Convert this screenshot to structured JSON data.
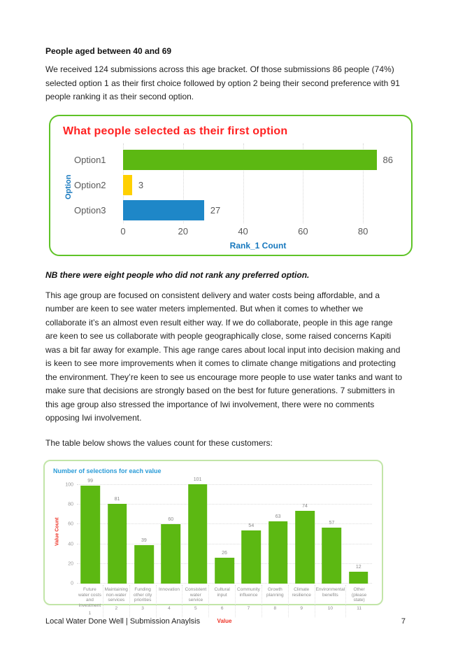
{
  "page": {
    "heading": "People aged between 40 and 69",
    "paragraph1": "We received 124 submissions across this age bracket.  Of those submissions 86 people (74%) selected option 1 as their first choice followed by option 2 being their second preference with 91 people ranking it as their second option.",
    "nb_note": "NB there were eight people who did not rank any preferred option.",
    "paragraph2": "This age group are focused on consistent delivery and water costs being affordable, and a number are keen to see water meters implemented. But when it comes to whether we collaborate it’s an almost even result either way. If we do collaborate, people in this age range are keen to see us collaborate with people geographically close, some raised concerns Kapiti was a bit far away for example. This age range cares about local input into decision making and is keen to see more improvements when it comes to climate change mitigations and protecting the environment. They’re keen to see us encourage more people to use water tanks and want to make sure that decisions are strongly based on the best for future generations. 7 submitters in this age group also stressed the importance of Iwi involvement, there were no comments opposing Iwi involvement.",
    "paragraph3": "The table below shows the values count for these customers:",
    "footer": {
      "left": "Local Water Done Well | Submission Anaylsis",
      "page_number": "7"
    }
  },
  "colors": {
    "chart1_border": "#5fc327",
    "chart1_title_red": "#ff2121",
    "axis_blue": "#1778be",
    "chart2_border": "#c2e5a8",
    "chart2_title_blue": "#2b9cd8",
    "chart2_axis_red": "#ee3124",
    "bar_green": "#5cb812",
    "bar_yellow": "#ffd000",
    "bar_blue": "#1e87c8"
  },
  "chart_data": [
    {
      "type": "bar",
      "orientation": "horizontal",
      "title": "What people selected as their first option",
      "categories": [
        "Option1",
        "Option2",
        "Option3"
      ],
      "values": [
        86,
        3,
        27
      ],
      "bar_colors": [
        "#5cb812",
        "#ffd000",
        "#1e87c8"
      ],
      "xlabel": "Rank_1 Count",
      "ylabel": "Option",
      "xlim": [
        0,
        90
      ],
      "xticks": [
        0,
        20,
        40,
        60,
        80
      ],
      "grid": "vertical-dotted",
      "data_labels": true
    },
    {
      "type": "bar",
      "orientation": "vertical",
      "title": "Number of selections for each value",
      "categories": [
        "Future water costs and investment",
        "Maintaining non-water services",
        "Funding other city priorities",
        "Innovation",
        "Consistent water service",
        "Cultural input",
        "Community influence",
        "Growth planning",
        "Climate resilience",
        "Environmental benefits",
        "Other (please state)"
      ],
      "category_numbers": [
        "1",
        "2",
        "3",
        "4",
        "5",
        "6",
        "7",
        "8",
        "9",
        "10",
        "11"
      ],
      "values": [
        99,
        81,
        39,
        60,
        101,
        26,
        54,
        63,
        74,
        57,
        12
      ],
      "bar_color": "#5cb812",
      "xlabel": "Value",
      "ylabel": "Value Count",
      "ylim": [
        0,
        105
      ],
      "yticks": [
        0,
        20,
        40,
        60,
        80,
        100
      ],
      "grid": "horizontal-dotted",
      "data_labels": true
    }
  ]
}
